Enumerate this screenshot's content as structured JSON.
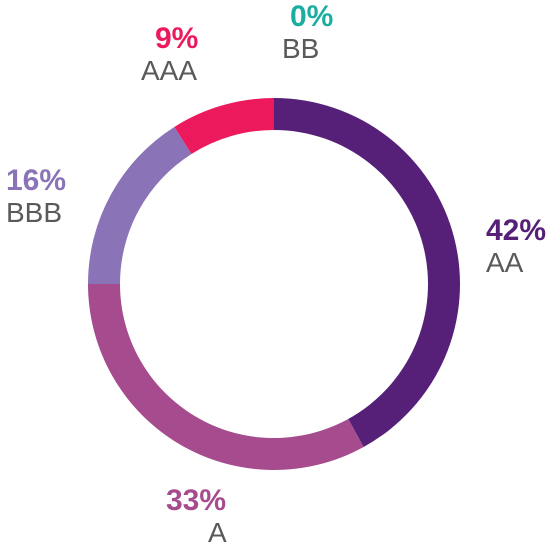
{
  "chart_data": {
    "type": "pie",
    "variant": "donut",
    "slices": [
      {
        "label": "AA",
        "value": 42,
        "value_label": "42%",
        "color": "#562078"
      },
      {
        "label": "A",
        "value": 33,
        "value_label": "33%",
        "color": "#A54B8E"
      },
      {
        "label": "BBB",
        "value": 16,
        "value_label": "16%",
        "color": "#8A73B7"
      },
      {
        "label": "AAA",
        "value": 9,
        "value_label": "9%",
        "color": "#EC1A5D"
      },
      {
        "label": "BB",
        "value": 0,
        "value_label": "0%",
        "color": "#1BADA0"
      }
    ],
    "start": "12 o'clock",
    "direction": "clockwise",
    "legend": "none"
  }
}
